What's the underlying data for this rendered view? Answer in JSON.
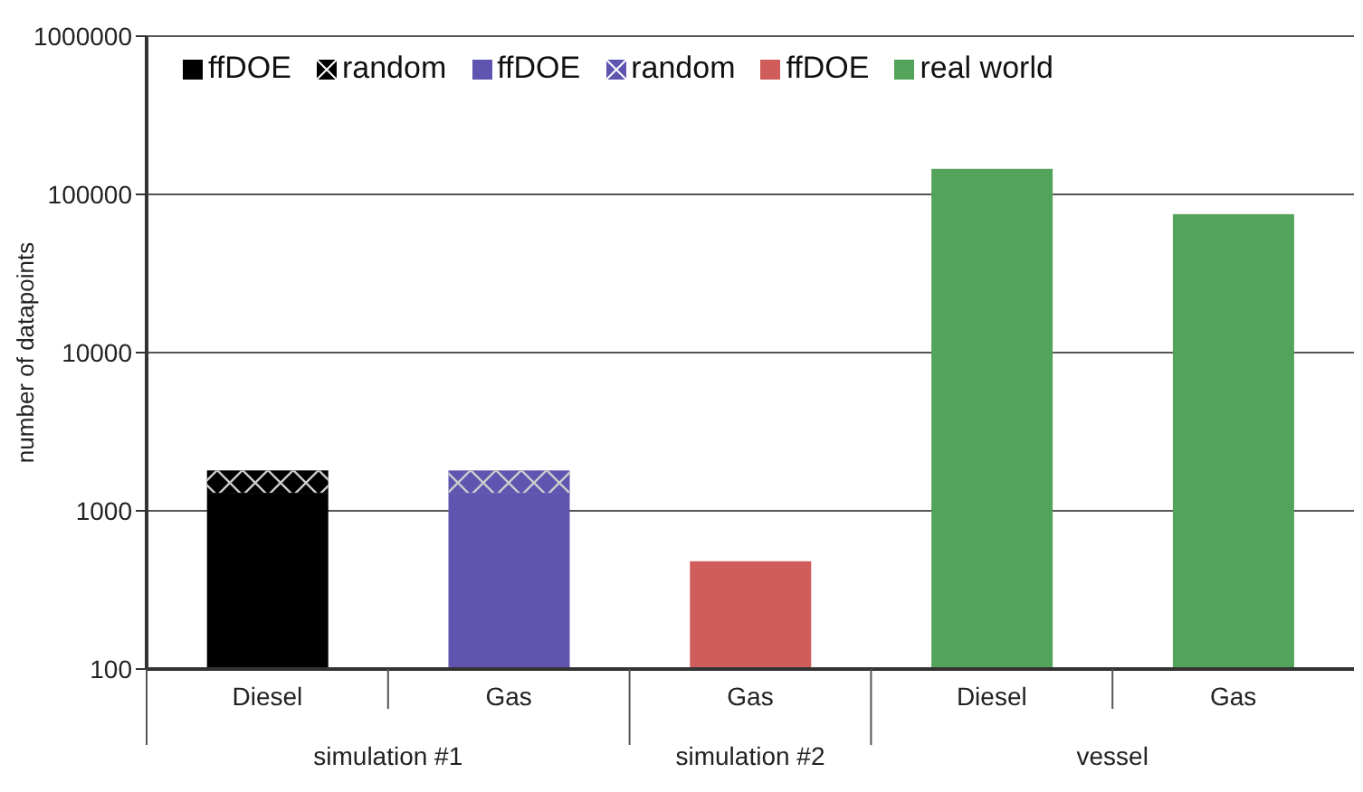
{
  "chart_data": {
    "type": "bar",
    "stacked": true,
    "log": true,
    "ylabel": "number of datapoints",
    "categories": [
      "Diesel",
      "Gas",
      "Gas",
      "Diesel",
      "Gas"
    ],
    "annotations": [
      "simulation #1",
      "simulation #2",
      "vessel"
    ],
    "series": [
      {
        "name": "ffDOE",
        "color": "#000000",
        "values": [
          1300,
          null,
          null,
          null,
          null
        ]
      },
      {
        "name": "random",
        "color": "#000000",
        "values": [
          500,
          null,
          null,
          null,
          null
        ]
      },
      {
        "name": "ffDOE",
        "color": "#5f55b0",
        "values": [
          null,
          1300,
          null,
          null,
          null
        ]
      },
      {
        "name": "random",
        "color": "#5f55b0",
        "values": [
          null,
          500,
          null,
          null,
          null
        ]
      },
      {
        "name": "ffDOE",
        "color": "#d05c5c",
        "values": [
          null,
          null,
          480,
          null,
          null
        ]
      },
      {
        "name": "real world",
        "color": "#54a35a",
        "values": [
          null,
          null,
          null,
          145000,
          75000
        ]
      }
    ],
    "ylim": [
      100,
      1000000
    ],
    "yticks": [
      100,
      1000,
      10000,
      100000,
      1000000
    ],
    "grid": "y",
    "legend": "top left"
  }
}
